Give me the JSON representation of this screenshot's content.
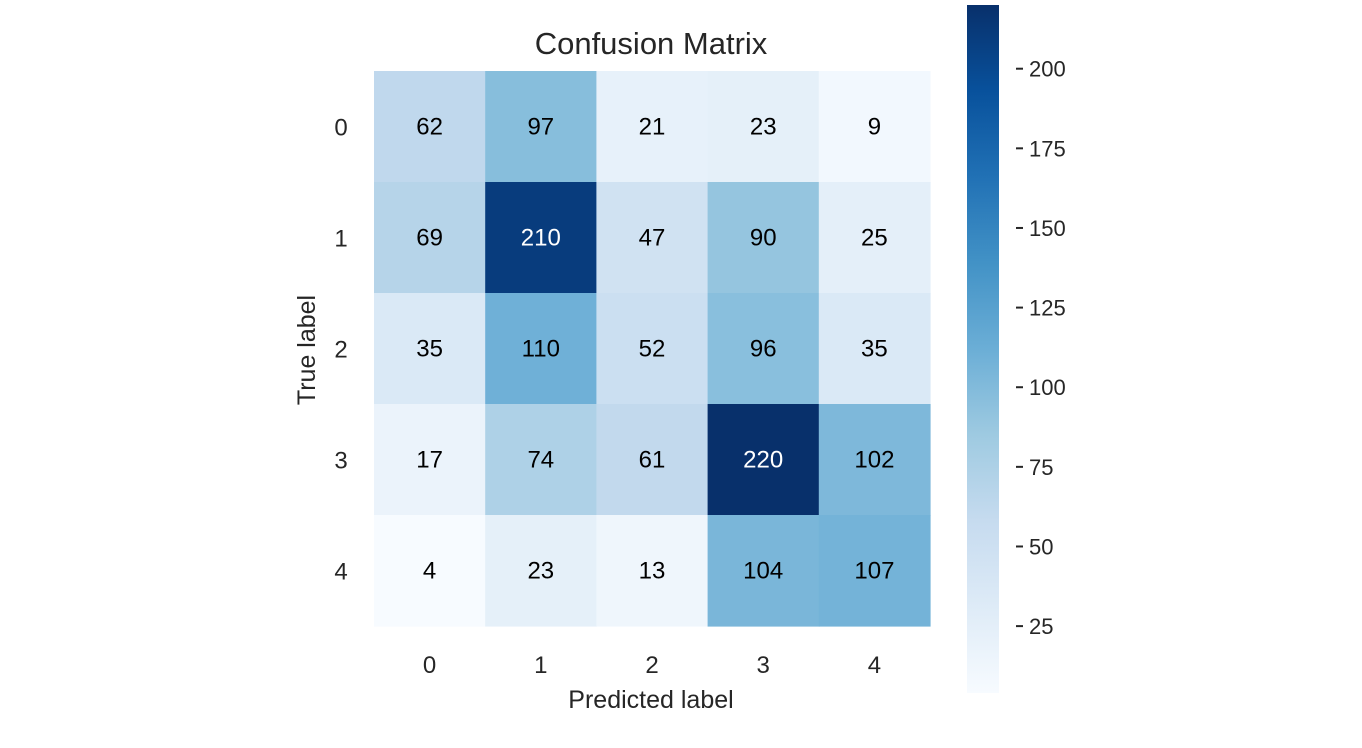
{
  "chart_data": {
    "type": "heatmap",
    "title": "Confusion Matrix",
    "xlabel": "Predicted label",
    "ylabel": "True label",
    "x_categories": [
      "0",
      "1",
      "2",
      "3",
      "4"
    ],
    "y_categories": [
      "0",
      "1",
      "2",
      "3",
      "4"
    ],
    "values": [
      [
        62,
        97,
        21,
        23,
        9
      ],
      [
        69,
        210,
        47,
        90,
        25
      ],
      [
        35,
        110,
        52,
        96,
        35
      ],
      [
        17,
        74,
        61,
        220,
        102
      ],
      [
        4,
        23,
        13,
        104,
        107
      ]
    ],
    "colormap": "Blues",
    "color_range": [
      4,
      220
    ],
    "colorbar_ticks": [
      25,
      50,
      75,
      100,
      125,
      150,
      175,
      200
    ],
    "grid": false
  }
}
